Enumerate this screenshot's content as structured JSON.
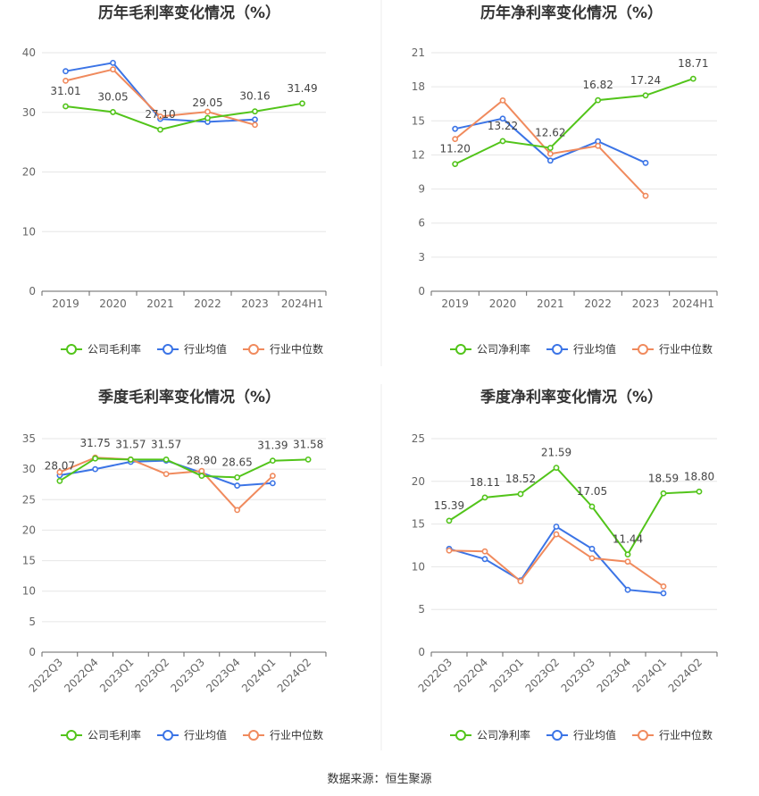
{
  "source_text": "数据来源：恒生聚源",
  "colors": {
    "company": "#52c41a",
    "avg": "#3b74e6",
    "median": "#f08a5d"
  },
  "chart_data": [
    {
      "id": "annual-gross",
      "type": "line",
      "title": "历年毛利率变化情况（%）",
      "categories": [
        "2019",
        "2020",
        "2021",
        "2022",
        "2023",
        "2024H1"
      ],
      "ylim": [
        0,
        40
      ],
      "yticks": [
        0,
        10,
        20,
        30,
        40
      ],
      "grid": true,
      "legend_position": "bottom",
      "series": [
        {
          "name": "公司毛利率",
          "key": "company",
          "values": [
            31.01,
            30.05,
            27.1,
            29.05,
            30.16,
            31.49
          ],
          "labels": [
            "31.01",
            "30.05",
            "27.10",
            "29.05",
            "30.16",
            "31.49"
          ]
        },
        {
          "name": "行业均值",
          "key": "avg",
          "values": [
            36.9,
            38.3,
            28.9,
            28.4,
            28.8,
            null
          ]
        },
        {
          "name": "行业中位数",
          "key": "median",
          "values": [
            35.3,
            37.2,
            29.3,
            30.1,
            27.9,
            null
          ]
        }
      ]
    },
    {
      "id": "annual-net",
      "type": "line",
      "title": "历年净利率变化情况（%）",
      "categories": [
        "2019",
        "2020",
        "2021",
        "2022",
        "2023",
        "2024H1"
      ],
      "ylim": [
        0,
        21
      ],
      "yticks": [
        0,
        3,
        6,
        9,
        12,
        15,
        18,
        21
      ],
      "grid": true,
      "legend_position": "bottom",
      "series": [
        {
          "name": "公司净利率",
          "key": "company",
          "values": [
            11.2,
            13.22,
            12.62,
            16.82,
            17.24,
            18.71
          ],
          "labels": [
            "11.20",
            "13.22",
            "12.62",
            "16.82",
            "17.24",
            "18.71"
          ]
        },
        {
          "name": "行业均值",
          "key": "avg",
          "values": [
            14.3,
            15.2,
            11.5,
            13.2,
            11.3,
            null
          ]
        },
        {
          "name": "行业中位数",
          "key": "median",
          "values": [
            13.4,
            16.8,
            12.1,
            12.8,
            8.4,
            null
          ]
        }
      ]
    },
    {
      "id": "quarterly-gross",
      "type": "line",
      "title": "季度毛利率变化情况（%）",
      "categories": [
        "2022Q3",
        "2022Q4",
        "2023Q1",
        "2023Q2",
        "2023Q3",
        "2023Q4",
        "2024Q1",
        "2024Q2"
      ],
      "ylim": [
        0,
        35
      ],
      "yticks": [
        0,
        5,
        10,
        15,
        20,
        25,
        30,
        35
      ],
      "grid": true,
      "legend_position": "bottom",
      "series": [
        {
          "name": "公司毛利率",
          "key": "company",
          "values": [
            28.07,
            31.75,
            31.57,
            31.57,
            28.9,
            28.65,
            31.39,
            31.58
          ],
          "labels": [
            "28.07",
            "31.75",
            "31.57",
            "31.57",
            "28.90",
            "28.65",
            "31.39",
            "31.58"
          ]
        },
        {
          "name": "行业均值",
          "key": "avg",
          "values": [
            29.0,
            30.0,
            31.2,
            31.4,
            29.4,
            27.3,
            27.7,
            null
          ]
        },
        {
          "name": "行业中位数",
          "key": "median",
          "values": [
            29.5,
            31.9,
            31.6,
            29.2,
            29.7,
            23.3,
            28.9,
            null
          ]
        }
      ]
    },
    {
      "id": "quarterly-net",
      "type": "line",
      "title": "季度净利率变化情况（%）",
      "categories": [
        "2022Q3",
        "2022Q4",
        "2023Q1",
        "2023Q2",
        "2023Q3",
        "2023Q4",
        "2024Q1",
        "2024Q2"
      ],
      "ylim": [
        0,
        25
      ],
      "yticks": [
        0,
        5,
        10,
        15,
        20,
        25
      ],
      "grid": true,
      "legend_position": "bottom",
      "series": [
        {
          "name": "公司净利率",
          "key": "company",
          "values": [
            15.39,
            18.11,
            18.52,
            21.59,
            17.05,
            11.44,
            18.59,
            18.8
          ],
          "labels": [
            "15.39",
            "18.11",
            "18.52",
            "21.59",
            "17.05",
            "11.44",
            "18.59",
            "18.80"
          ]
        },
        {
          "name": "行业均值",
          "key": "avg",
          "values": [
            12.1,
            10.9,
            8.4,
            14.7,
            12.1,
            7.3,
            6.9,
            null
          ]
        },
        {
          "name": "行业中位数",
          "key": "median",
          "values": [
            11.9,
            11.8,
            8.3,
            13.8,
            11.0,
            10.6,
            7.7,
            null
          ]
        }
      ]
    }
  ]
}
